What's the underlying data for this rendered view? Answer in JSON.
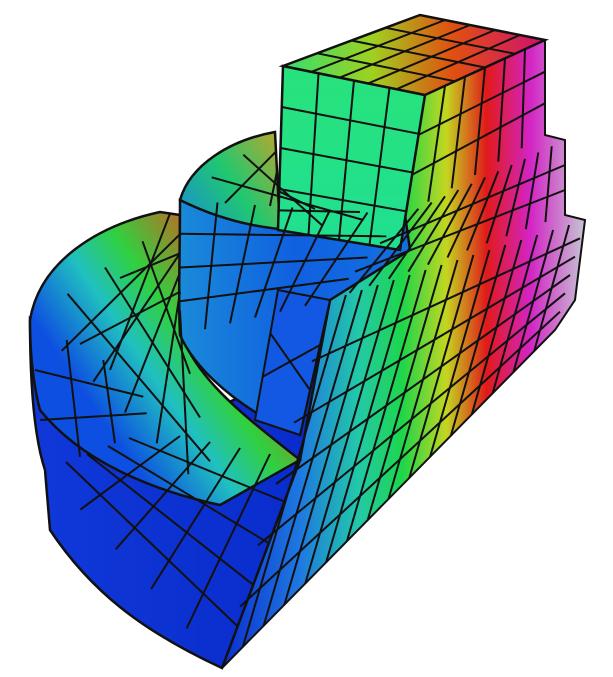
{
  "scene": {
    "description_kind": "finite-element hexahedral mesh, 3D render",
    "colormap": [
      "#0a2fd6",
      "#1677e6",
      "#18c8c0",
      "#22e070",
      "#18d030",
      "#d8d020",
      "#e01020",
      "#d020c0",
      "#c0c0d0"
    ],
    "mesh_line_color": "#111111",
    "background": "#ffffff",
    "has_text": false
  }
}
